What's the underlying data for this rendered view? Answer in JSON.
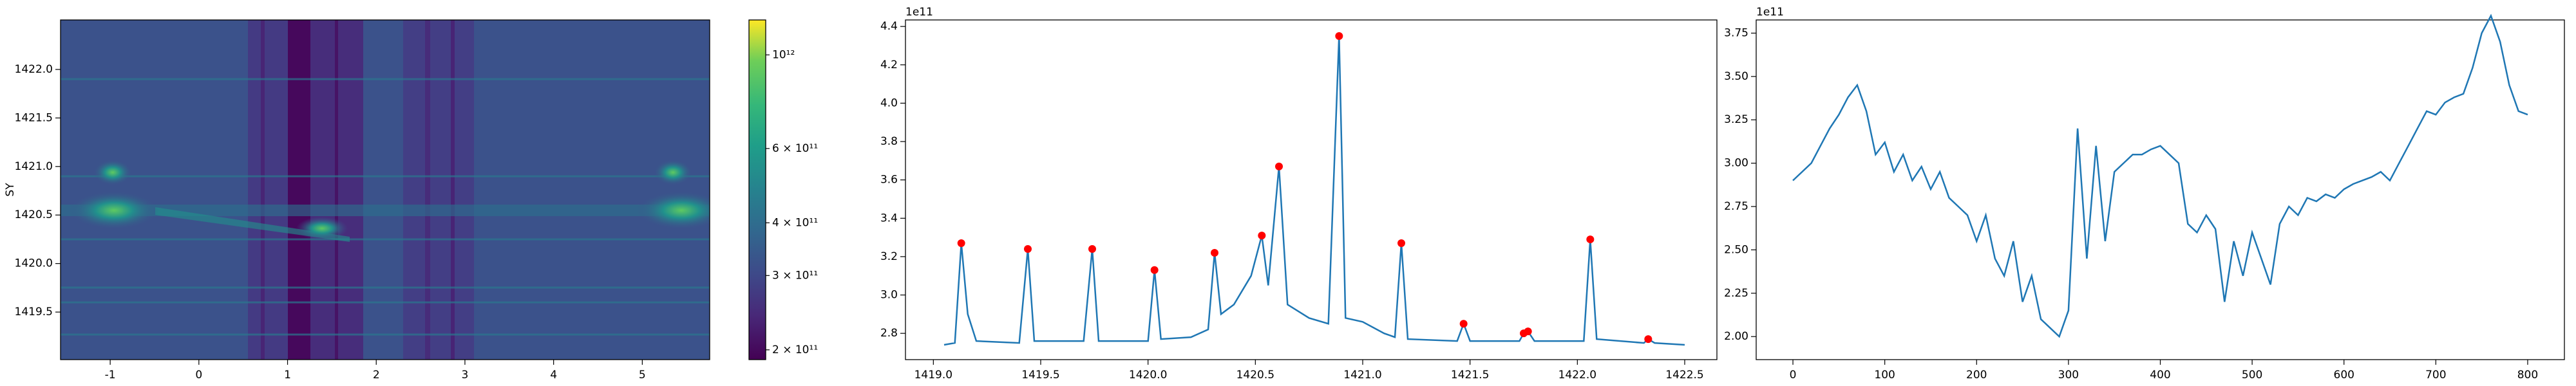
{
  "chart_data": [
    {
      "type": "heatmap",
      "ylabel": "SY",
      "xlim": [
        -1.56,
        5.76
      ],
      "xticks": [
        -1,
        0,
        1,
        2,
        3,
        4,
        5
      ],
      "ylim": [
        1419.01,
        1422.51
      ],
      "yticks": [
        {
          "value": 1419.5,
          "label": "1419.5"
        },
        {
          "value": 1420.0,
          "label": "1420.0"
        },
        {
          "value": 1420.5,
          "label": "1420.5"
        },
        {
          "value": 1421.0,
          "label": "1421.0"
        },
        {
          "value": 1421.5,
          "label": "1421.5"
        },
        {
          "value": 1422.0,
          "label": "1422.0"
        }
      ],
      "colorbar": {
        "colormap": "viridis",
        "scale": "log",
        "lim": [
          189600000000.0,
          1210000000000.0
        ],
        "ticks": [
          {
            "value": 200000000000.0,
            "label": "2 × 10¹¹"
          },
          {
            "value": 300000000000.0,
            "label": "3 × 10¹¹"
          },
          {
            "value": 400000000000.0,
            "label": "4 × 10¹¹"
          },
          {
            "value": 600000000000.0,
            "label": "6 × 10¹¹"
          },
          {
            "value": 1000000000000.0,
            "label": "10¹²"
          }
        ]
      }
    },
    {
      "type": "line",
      "offset_text": "1e11",
      "xlim": [
        1418.87,
        1422.65
      ],
      "xticks": [
        {
          "value": 1419.0,
          "label": "1419.0"
        },
        {
          "value": 1419.5,
          "label": "1419.5"
        },
        {
          "value": 1420.0,
          "label": "1420.0"
        },
        {
          "value": 1420.5,
          "label": "1420.5"
        },
        {
          "value": 1421.0,
          "label": "1421.0"
        },
        {
          "value": 1421.5,
          "label": "1421.5"
        },
        {
          "value": 1422.0,
          "label": "1422.0"
        },
        {
          "value": 1422.5,
          "label": "1422.5"
        }
      ],
      "ylim": [
        2.663,
        4.434
      ],
      "yticks": [
        2.8,
        {
          "value": 3.0,
          "label": "3.0"
        },
        3.2,
        3.4,
        3.6,
        3.8,
        {
          "value": 4.0,
          "label": "4.0"
        },
        4.2,
        4.4
      ],
      "series": [
        {
          "style": "line",
          "color": "#1f77b4",
          "x": [
            1419.05,
            1419.1,
            1419.13,
            1419.16,
            1419.2,
            1419.4,
            1419.44,
            1419.47,
            1419.7,
            1419.74,
            1419.77,
            1420.0,
            1420.03,
            1420.06,
            1420.2,
            1420.28,
            1420.31,
            1420.34,
            1420.4,
            1420.48,
            1420.53,
            1420.56,
            1420.61,
            1420.65,
            1420.75,
            1420.84,
            1420.89,
            1420.92,
            1421.0,
            1421.1,
            1421.15,
            1421.18,
            1421.21,
            1421.44,
            1421.47,
            1421.5,
            1421.73,
            1421.75,
            1421.77,
            1421.8,
            1422.03,
            1422.06,
            1422.09,
            1422.31,
            1422.33,
            1422.36,
            1422.5
          ],
          "values": [
            2.74,
            2.75,
            3.27,
            2.9,
            2.76,
            2.75,
            3.24,
            2.76,
            2.76,
            3.24,
            2.76,
            2.76,
            3.13,
            2.77,
            2.78,
            2.82,
            3.22,
            2.9,
            2.95,
            3.1,
            3.31,
            3.05,
            3.67,
            2.95,
            2.88,
            2.85,
            4.35,
            2.88,
            2.86,
            2.8,
            2.78,
            3.27,
            2.77,
            2.76,
            2.85,
            2.76,
            2.76,
            2.8,
            2.81,
            2.76,
            2.76,
            3.29,
            2.77,
            2.75,
            2.77,
            2.75,
            2.74
          ]
        },
        {
          "style": "markers",
          "color": "#ff0000",
          "x": [
            1419.13,
            1419.44,
            1419.74,
            1420.03,
            1420.31,
            1420.53,
            1420.61,
            1420.89,
            1421.18,
            1421.47,
            1421.75,
            1421.77,
            1422.06,
            1422.33
          ],
          "values": [
            3.27,
            3.24,
            3.24,
            3.13,
            3.22,
            3.31,
            3.67,
            4.35,
            3.27,
            2.85,
            2.8,
            2.81,
            3.29,
            2.77
          ]
        }
      ]
    },
    {
      "type": "line",
      "offset_text": "1e11",
      "xlim": [
        -40,
        840
      ],
      "xticks": [
        0,
        100,
        200,
        300,
        400,
        500,
        600,
        700,
        800
      ],
      "ylim": [
        1.867,
        3.826
      ],
      "yticks": [
        {
          "value": 2.0,
          "label": "2.00"
        },
        {
          "value": 2.25,
          "label": "2.25"
        },
        {
          "value": 2.5,
          "label": "2.50"
        },
        {
          "value": 2.75,
          "label": "2.75"
        },
        {
          "value": 3.0,
          "label": "3.00"
        },
        {
          "value": 3.25,
          "label": "3.25"
        },
        {
          "value": 3.5,
          "label": "3.50"
        },
        {
          "value": 3.75,
          "label": "3.75"
        }
      ],
      "series": [
        {
          "style": "line",
          "color": "#1f77b4",
          "x": [
            0,
            10,
            20,
            30,
            40,
            50,
            60,
            70,
            80,
            90,
            100,
            110,
            120,
            130,
            140,
            150,
            160,
            170,
            180,
            190,
            200,
            210,
            220,
            230,
            240,
            250,
            260,
            270,
            280,
            290,
            300,
            310,
            320,
            330,
            340,
            350,
            360,
            370,
            380,
            390,
            400,
            410,
            420,
            430,
            440,
            450,
            460,
            470,
            480,
            490,
            500,
            510,
            520,
            530,
            540,
            550,
            560,
            570,
            580,
            590,
            600,
            610,
            620,
            630,
            640,
            650,
            660,
            670,
            680,
            690,
            700,
            710,
            720,
            730,
            740,
            750,
            760,
            770,
            780,
            790,
            800
          ],
          "values": [
            2.9,
            2.95,
            3.0,
            3.1,
            3.2,
            3.28,
            3.38,
            3.45,
            3.3,
            3.05,
            3.12,
            2.95,
            3.05,
            2.9,
            2.98,
            2.85,
            2.95,
            2.8,
            2.75,
            2.7,
            2.55,
            2.7,
            2.45,
            2.35,
            2.55,
            2.2,
            2.35,
            2.1,
            2.05,
            2.0,
            2.15,
            3.2,
            2.45,
            3.1,
            2.55,
            2.95,
            3.0,
            3.05,
            3.05,
            3.08,
            3.1,
            3.05,
            3.0,
            2.65,
            2.6,
            2.7,
            2.62,
            2.2,
            2.55,
            2.35,
            2.6,
            2.45,
            2.3,
            2.65,
            2.75,
            2.7,
            2.8,
            2.78,
            2.82,
            2.8,
            2.85,
            2.88,
            2.9,
            2.92,
            2.95,
            2.9,
            3.0,
            3.1,
            3.2,
            3.3,
            3.28,
            3.35,
            3.38,
            3.4,
            3.55,
            3.75,
            3.85,
            3.7,
            3.45,
            3.3,
            3.28
          ]
        }
      ]
    }
  ]
}
